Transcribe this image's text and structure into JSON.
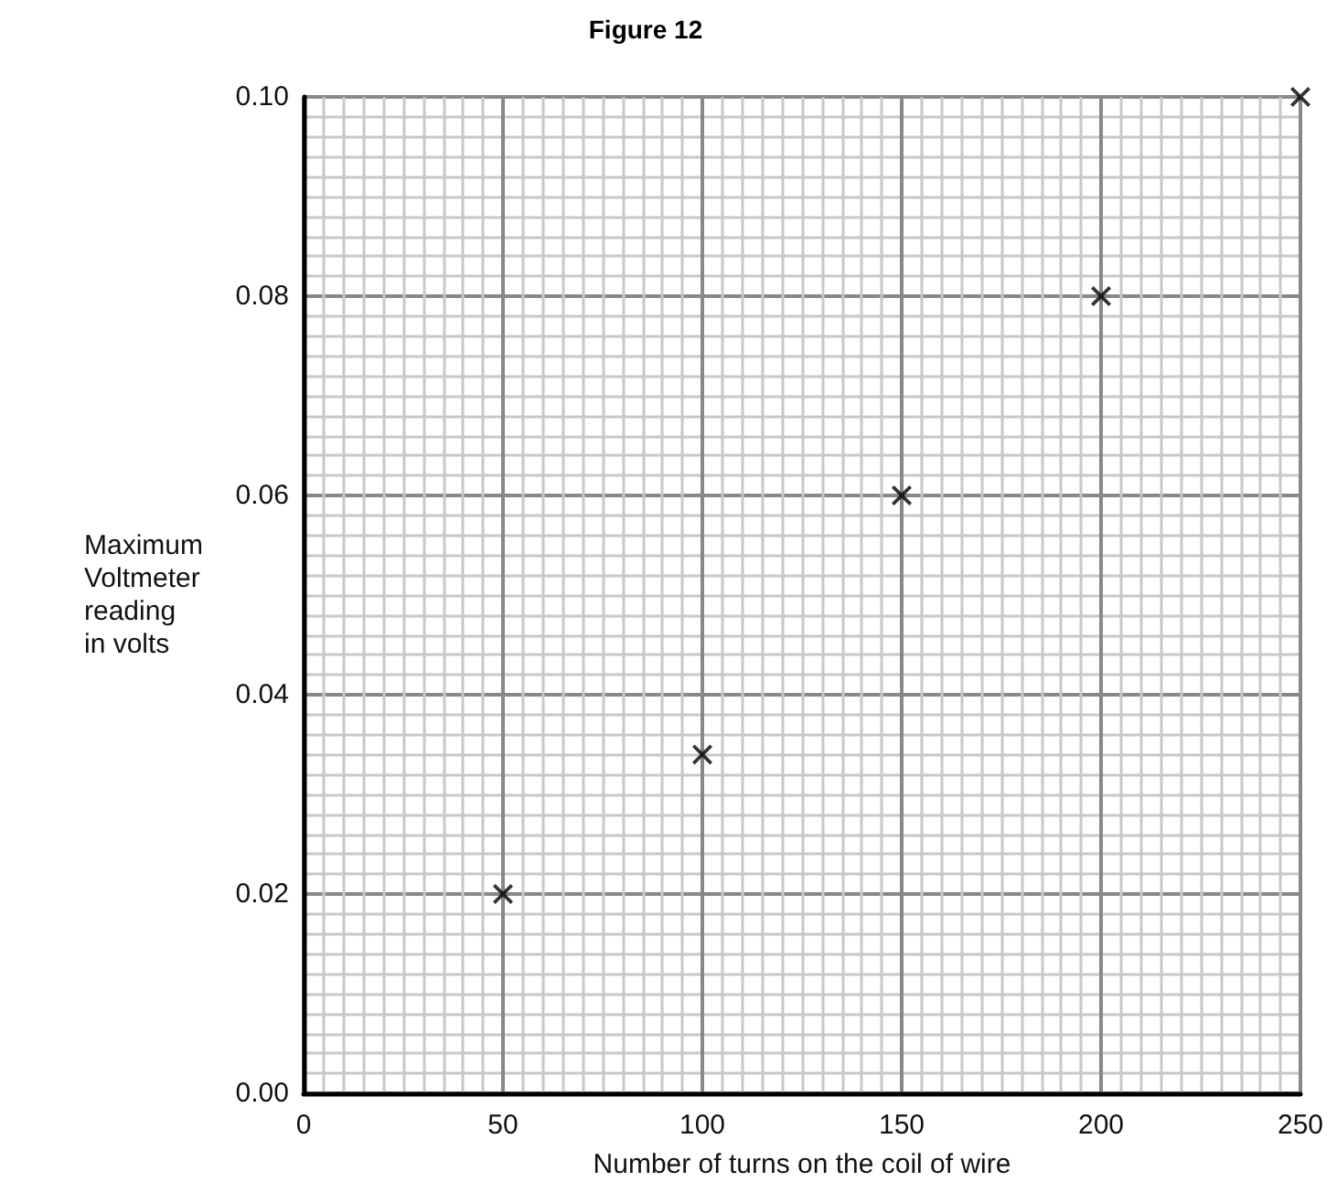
{
  "chart_data": {
    "type": "scatter",
    "title": "Figure 12",
    "xlabel": "Number of turns on the coil of wire",
    "ylabel": "Maximum\nVoltmeter\nreading\nin volts",
    "x": [
      50,
      100,
      150,
      200,
      250
    ],
    "series": [
      {
        "color": "#000000",
        "values": [
          0.02,
          0.034,
          0.06,
          0.08,
          0.1
        ]
      }
    ],
    "xlim": [
      0,
      250
    ],
    "xticks": [
      0,
      50,
      100,
      150,
      200,
      250
    ],
    "ylim": [
      0,
      0.1
    ],
    "yticks": [
      {
        "value": 0,
        "label": "0.00"
      },
      {
        "value": 0.02,
        "label": "0.02"
      },
      {
        "value": 0.04,
        "label": "0.04"
      },
      {
        "value": 0.06,
        "label": "0.06"
      },
      {
        "value": 0.08,
        "label": "0.08"
      },
      {
        "value": 0.1,
        "label": "0.10"
      }
    ],
    "grid": true,
    "marker": "cross"
  }
}
